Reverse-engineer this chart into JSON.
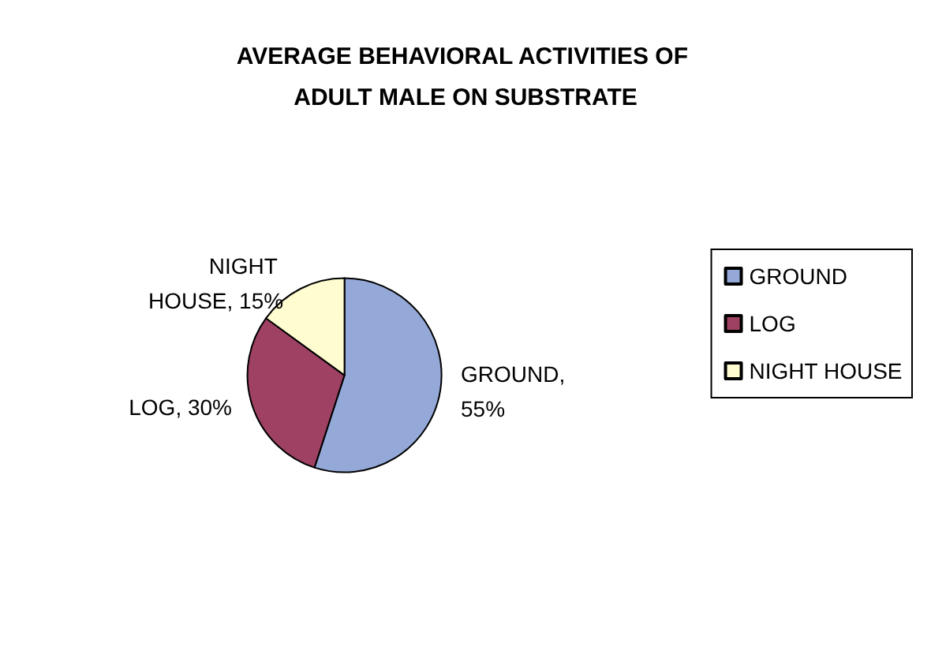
{
  "chart_data": {
    "type": "pie",
    "title": "AVERAGE BEHAVIORAL ACTIVITIES OF ADULT MALE ON SUBSTRATE",
    "categories": [
      "GROUND",
      "LOG",
      "NIGHT HOUSE"
    ],
    "values": [
      55,
      30,
      15
    ],
    "value_labels": [
      "GROUND, 55%",
      "LOG, 30%",
      "NIGHT HOUSE, 15%"
    ],
    "colors": [
      "#94a9d8",
      "#9e4163",
      "#fffcd0"
    ],
    "legend": "right"
  }
}
